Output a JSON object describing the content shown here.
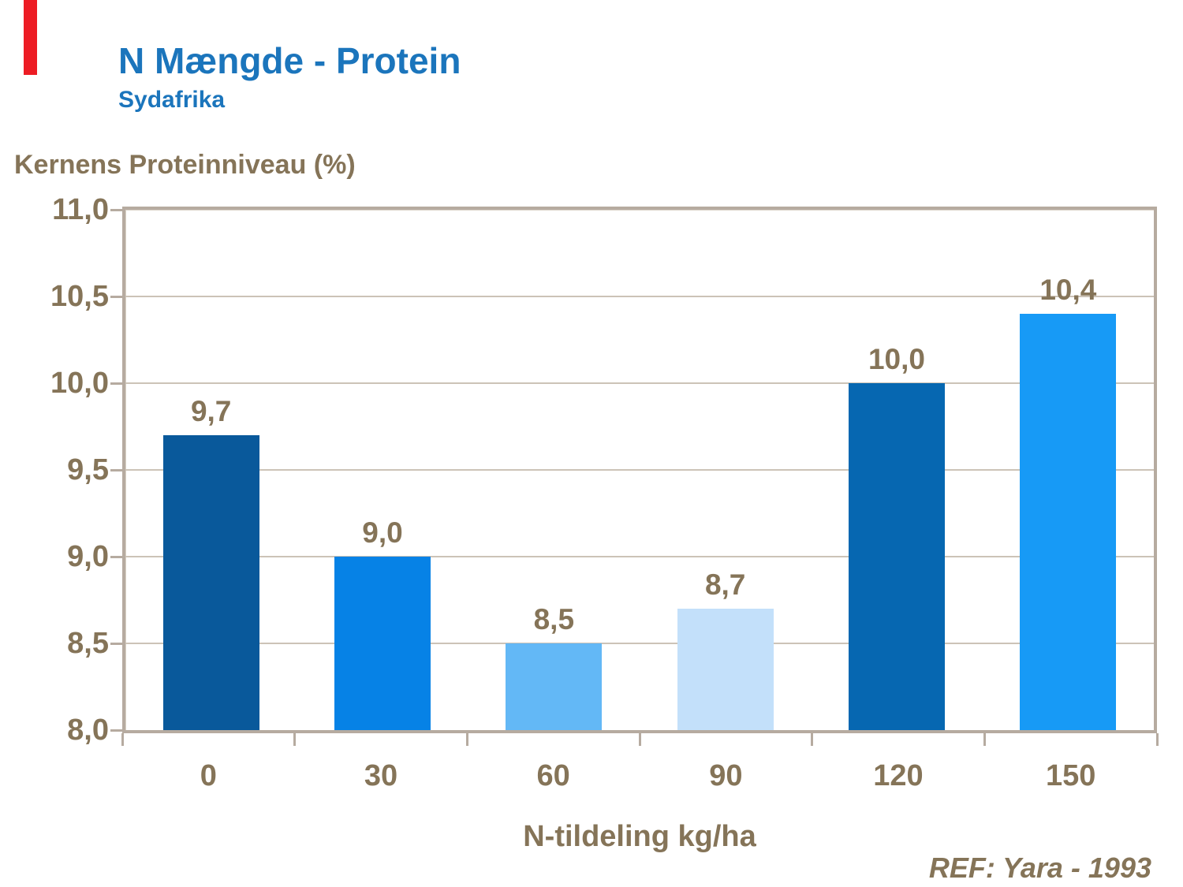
{
  "colors": {
    "title_blue": "#1B75BC",
    "axis_brown": "#857458",
    "frame_tan": "#B6ABA0",
    "gridline_tan": "#CCC3B7",
    "accent_red": "#ED1C24"
  },
  "header": {
    "title": "N Mængde - Protein",
    "subtitle": "Sydafrika"
  },
  "footnote": "REF: Yara - 1993",
  "chart_data": {
    "type": "bar",
    "title": "N Mængde - Protein",
    "subtitle": "Sydafrika",
    "ylabel": "Kernens Proteinniveau (%)",
    "xlabel": "N-tildeling kg/ha",
    "categories": [
      "0",
      "30",
      "60",
      "90",
      "120",
      "150"
    ],
    "values": [
      9.7,
      9.0,
      8.5,
      8.7,
      10.0,
      10.4
    ],
    "value_labels": [
      "9,7",
      "9,0",
      "8,5",
      "8,7",
      "10,0",
      "10,4"
    ],
    "bar_colors": [
      "#09599B",
      "#0682E6",
      "#63B8F6",
      "#C3E0FA",
      "#0667B1",
      "#179AF6"
    ],
    "ylim": [
      8.0,
      11.0
    ],
    "y_tick_step": 0.5,
    "y_ticks": [
      {
        "value": 11.0,
        "label": "11,0"
      },
      {
        "value": 10.5,
        "label": "10,5"
      },
      {
        "value": 10.0,
        "label": "10,0"
      },
      {
        "value": 9.5,
        "label": "9,5"
      },
      {
        "value": 9.0,
        "label": "9,0"
      },
      {
        "value": 8.5,
        "label": "8,5"
      },
      {
        "value": 8.0,
        "label": "8,0"
      }
    ],
    "grid": "horizontal",
    "legend": "none"
  }
}
